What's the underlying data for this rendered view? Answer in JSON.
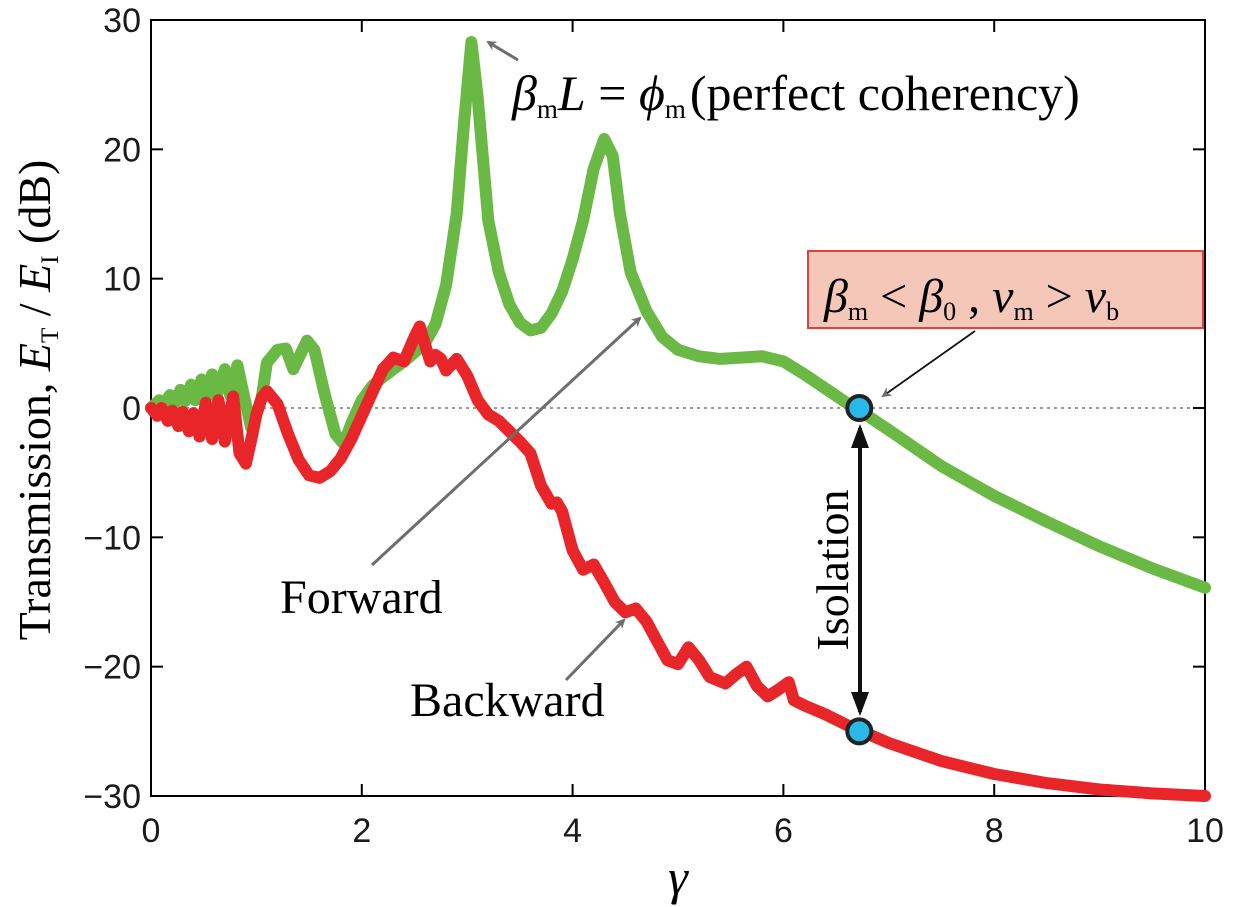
{
  "chart_data": {
    "type": "line",
    "title": "",
    "xlabel": "γ",
    "ylabel": {
      "prefix": "Transmission, ",
      "num_sym": "E",
      "num_sub": "T",
      "slash": " / ",
      "den_sym": "E",
      "den_sub": "I",
      "unit": " (dB)"
    },
    "xlim": [
      0,
      10
    ],
    "ylim": [
      -30,
      30
    ],
    "xticks": [
      0,
      2,
      4,
      6,
      8,
      10
    ],
    "yticks": [
      -30,
      -20,
      -10,
      0,
      10,
      20,
      30
    ],
    "xtick_labels": [
      "0",
      "2",
      "4",
      "6",
      "8",
      "10"
    ],
    "ytick_labels": [
      "−30",
      "−20",
      "−10",
      "0",
      "10",
      "20",
      "30"
    ],
    "reference_line": {
      "y": 0,
      "style": "dotted"
    },
    "series": [
      {
        "name": "Forward",
        "color": "#6ab945",
        "points": [
          [
            0.0,
            0.0
          ],
          [
            0.08,
            0.6
          ],
          [
            0.12,
            0.2
          ],
          [
            0.18,
            1.0
          ],
          [
            0.22,
            0.3
          ],
          [
            0.28,
            1.4
          ],
          [
            0.32,
            0.5
          ],
          [
            0.38,
            1.8
          ],
          [
            0.42,
            0.6
          ],
          [
            0.48,
            2.2
          ],
          [
            0.52,
            0.8
          ],
          [
            0.58,
            2.6
          ],
          [
            0.62,
            0.9
          ],
          [
            0.7,
            3.0
          ],
          [
            0.75,
            1.0
          ],
          [
            0.82,
            3.3
          ],
          [
            0.88,
            1.0
          ],
          [
            0.95,
            -1.5
          ],
          [
            1.0,
            -0.5
          ],
          [
            1.05,
            0.8
          ],
          [
            1.1,
            3.5
          ],
          [
            1.2,
            4.5
          ],
          [
            1.28,
            4.6
          ],
          [
            1.35,
            3.0
          ],
          [
            1.42,
            4.2
          ],
          [
            1.48,
            5.2
          ],
          [
            1.55,
            4.5
          ],
          [
            1.65,
            1.0
          ],
          [
            1.75,
            -2.0
          ],
          [
            1.83,
            -2.8
          ],
          [
            1.9,
            -1.2
          ],
          [
            2.0,
            0.6
          ],
          [
            2.1,
            1.7
          ],
          [
            2.2,
            2.4
          ],
          [
            2.3,
            3.0
          ],
          [
            2.4,
            3.6
          ],
          [
            2.5,
            4.3
          ],
          [
            2.6,
            5.0
          ],
          [
            2.7,
            6.5
          ],
          [
            2.8,
            9.5
          ],
          [
            2.9,
            15.0
          ],
          [
            2.97,
            22.0
          ],
          [
            3.04,
            28.3
          ],
          [
            3.1,
            24.0
          ],
          [
            3.2,
            14.5
          ],
          [
            3.3,
            10.5
          ],
          [
            3.4,
            8.0
          ],
          [
            3.5,
            6.6
          ],
          [
            3.6,
            6.0
          ],
          [
            3.7,
            6.2
          ],
          [
            3.8,
            7.3
          ],
          [
            3.9,
            9.0
          ],
          [
            4.0,
            11.5
          ],
          [
            4.1,
            14.5
          ],
          [
            4.2,
            18.5
          ],
          [
            4.3,
            20.8
          ],
          [
            4.38,
            19.5
          ],
          [
            4.45,
            15.0
          ],
          [
            4.55,
            10.5
          ],
          [
            4.7,
            7.5
          ],
          [
            4.85,
            5.5
          ],
          [
            5.0,
            4.5
          ],
          [
            5.2,
            4.0
          ],
          [
            5.4,
            3.8
          ],
          [
            5.6,
            3.9
          ],
          [
            5.8,
            4.0
          ],
          [
            6.0,
            3.6
          ],
          [
            6.2,
            2.6
          ],
          [
            6.4,
            1.5
          ],
          [
            6.6,
            0.4
          ],
          [
            6.8,
            -0.6
          ],
          [
            7.0,
            -1.7
          ],
          [
            7.5,
            -4.5
          ],
          [
            8.0,
            -6.8
          ],
          [
            8.5,
            -8.8
          ],
          [
            9.0,
            -10.7
          ],
          [
            9.5,
            -12.4
          ],
          [
            10.0,
            -13.9
          ]
        ]
      },
      {
        "name": "Backward",
        "color": "#e8262a",
        "points": [
          [
            0.0,
            0.0
          ],
          [
            0.06,
            -0.6
          ],
          [
            0.1,
            0.0
          ],
          [
            0.16,
            -1.0
          ],
          [
            0.2,
            -0.2
          ],
          [
            0.26,
            -1.4
          ],
          [
            0.3,
            -0.3
          ],
          [
            0.36,
            -1.8
          ],
          [
            0.4,
            -0.4
          ],
          [
            0.46,
            -2.2
          ],
          [
            0.52,
            0.4
          ],
          [
            0.58,
            -2.4
          ],
          [
            0.64,
            0.6
          ],
          [
            0.7,
            -2.6
          ],
          [
            0.78,
            0.9
          ],
          [
            0.84,
            -3.5
          ],
          [
            0.9,
            -4.3
          ],
          [
            0.95,
            -2.5
          ],
          [
            1.0,
            -0.5
          ],
          [
            1.05,
            0.8
          ],
          [
            1.1,
            1.3
          ],
          [
            1.2,
            0.3
          ],
          [
            1.3,
            -2.0
          ],
          [
            1.4,
            -4.0
          ],
          [
            1.5,
            -5.2
          ],
          [
            1.6,
            -5.4
          ],
          [
            1.7,
            -4.9
          ],
          [
            1.8,
            -3.9
          ],
          [
            1.9,
            -2.4
          ],
          [
            2.0,
            -0.6
          ],
          [
            2.1,
            1.2
          ],
          [
            2.2,
            3.0
          ],
          [
            2.3,
            3.9
          ],
          [
            2.4,
            3.6
          ],
          [
            2.5,
            5.5
          ],
          [
            2.55,
            6.3
          ],
          [
            2.6,
            4.9
          ],
          [
            2.65,
            3.6
          ],
          [
            2.7,
            4.1
          ],
          [
            2.75,
            3.8
          ],
          [
            2.8,
            2.9
          ],
          [
            2.9,
            3.8
          ],
          [
            3.0,
            2.5
          ],
          [
            3.1,
            0.6
          ],
          [
            3.2,
            -0.5
          ],
          [
            3.3,
            -1.0
          ],
          [
            3.4,
            -1.8
          ],
          [
            3.5,
            -2.6
          ],
          [
            3.6,
            -3.5
          ],
          [
            3.7,
            -6.0
          ],
          [
            3.8,
            -7.4
          ],
          [
            3.85,
            -7.3
          ],
          [
            3.9,
            -8.0
          ],
          [
            4.0,
            -11.0
          ],
          [
            4.1,
            -12.5
          ],
          [
            4.2,
            -12.1
          ],
          [
            4.3,
            -13.5
          ],
          [
            4.4,
            -15.0
          ],
          [
            4.5,
            -15.8
          ],
          [
            4.6,
            -15.5
          ],
          [
            4.7,
            -16.5
          ],
          [
            4.8,
            -18.0
          ],
          [
            4.9,
            -19.5
          ],
          [
            5.0,
            -19.8
          ],
          [
            5.1,
            -18.5
          ],
          [
            5.2,
            -19.5
          ],
          [
            5.3,
            -20.8
          ],
          [
            5.45,
            -21.3
          ],
          [
            5.55,
            -20.6
          ],
          [
            5.65,
            -20.0
          ],
          [
            5.75,
            -21.5
          ],
          [
            5.85,
            -22.3
          ],
          [
            5.95,
            -21.8
          ],
          [
            6.05,
            -21.2
          ],
          [
            6.1,
            -22.6
          ],
          [
            6.2,
            -23.0
          ],
          [
            6.4,
            -23.7
          ],
          [
            6.6,
            -24.5
          ],
          [
            6.8,
            -25.2
          ],
          [
            7.0,
            -25.9
          ],
          [
            7.5,
            -27.3
          ],
          [
            8.0,
            -28.3
          ],
          [
            8.5,
            -29.0
          ],
          [
            9.0,
            -29.5
          ],
          [
            9.5,
            -29.8
          ],
          [
            10.0,
            -30.0
          ]
        ]
      }
    ],
    "markers": [
      {
        "name": "forward-operating-point",
        "x": 6.72,
        "y": 0,
        "color": "#29b8e8"
      },
      {
        "name": "backward-operating-point",
        "x": 6.72,
        "y": -25,
        "color": "#29b8e8"
      }
    ],
    "annotations": {
      "forward_label": "Forward",
      "backward_label": "Backward",
      "isolation_label": "Isolation",
      "coherency": {
        "beta": "β",
        "sub_m": "m",
        "L": "L",
        "equals": " = ",
        "phi": "ϕ",
        "sub_m2": "m",
        "text": "(perfect coherency)"
      },
      "condition_box": {
        "beta": "β",
        "sub_m": "m",
        "lt": " < ",
        "beta0": "β",
        "sub_0": "0",
        "comma": " , ",
        "v": "v",
        "sub_m2": "m",
        "gt": " > ",
        "v2": "v",
        "sub_b": "b",
        "fill": "#f4c7b9",
        "border": "#e0413e"
      }
    }
  }
}
